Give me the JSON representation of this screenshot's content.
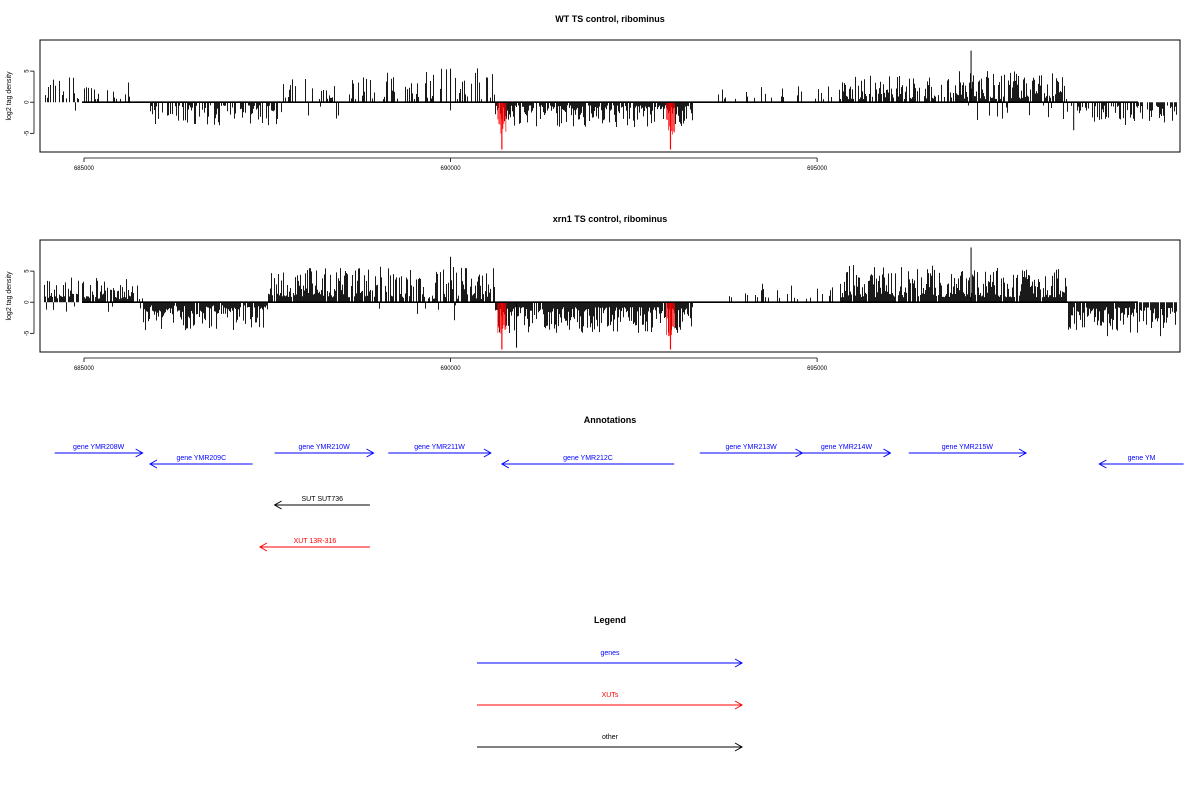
{
  "chart_data": [
    {
      "type": "bar",
      "title": "WT TS control, ribominus",
      "xlabel": "",
      "ylabel": "log2 tag density",
      "xlim": [
        684400,
        699950
      ],
      "xticks": [
        685000,
        690000,
        695000
      ],
      "ylim": [
        -8,
        10
      ],
      "yticks": [
        -5,
        0,
        5
      ],
      "colors": {
        "signal": "#000000",
        "highlight": "#ff0000"
      },
      "highlight": [
        {
          "x": 690700,
          "y": -7.6
        },
        {
          "x": 693000,
          "y": -7.6
        }
      ],
      "segments": [
        {
          "start": 684450,
          "end": 685800,
          "density": 0.3,
          "min": 0.5,
          "max": 4.0,
          "neg": 0.05
        },
        {
          "start": 685800,
          "end": 687700,
          "density": 0.55,
          "min": -3.8,
          "max": -0.5
        },
        {
          "start": 687700,
          "end": 689000,
          "density": 0.35,
          "min": 0.5,
          "max": 4.5,
          "neg": 0.15
        },
        {
          "start": 689000,
          "end": 690600,
          "density": 0.4,
          "min": 0.5,
          "max": 5.5,
          "neg": 0.05
        },
        {
          "start": 690600,
          "end": 693300,
          "density": 0.85,
          "min": -4.0,
          "max": -0.5
        },
        {
          "start": 693600,
          "end": 695300,
          "density": 0.15,
          "min": 0.5,
          "max": 2.8
        },
        {
          "start": 695300,
          "end": 696800,
          "density": 0.65,
          "min": 0.5,
          "max": 4.3
        },
        {
          "start": 696800,
          "end": 698400,
          "density": 0.9,
          "min": 0.5,
          "max": 5.0,
          "neg": 0.04
        },
        {
          "start": 698400,
          "end": 699900,
          "density": 0.6,
          "min": -3.8,
          "max": -0.5
        }
      ],
      "peaks": [
        {
          "x": 697100,
          "y": 8.3
        },
        {
          "x": 690000,
          "y": 5.4
        },
        {
          "x": 698500,
          "y": -4.5
        }
      ]
    },
    {
      "type": "bar",
      "title": "xrn1 TS control, ribominus",
      "xlabel": "",
      "ylabel": "log2 tag density",
      "xlim": [
        684400,
        699950
      ],
      "xticks": [
        685000,
        690000,
        695000
      ],
      "ylim": [
        -8,
        10
      ],
      "yticks": [
        -5,
        0,
        5
      ],
      "colors": {
        "signal": "#000000",
        "highlight": "#ff0000"
      },
      "highlight": [
        {
          "x": 690700,
          "y": -7.6
        },
        {
          "x": 693000,
          "y": -7.6
        }
      ],
      "segments": [
        {
          "start": 684450,
          "end": 685800,
          "density": 0.85,
          "min": 0.5,
          "max": 4.0,
          "neg": 0.08
        },
        {
          "start": 685800,
          "end": 687500,
          "density": 0.9,
          "min": -4.5,
          "max": -0.5
        },
        {
          "start": 687500,
          "end": 689000,
          "density": 0.9,
          "min": 0.8,
          "max": 5.5
        },
        {
          "start": 689000,
          "end": 690600,
          "density": 0.8,
          "min": 0.5,
          "max": 6.0,
          "neg": 0.08
        },
        {
          "start": 690600,
          "end": 693300,
          "density": 0.95,
          "min": -5.0,
          "max": -0.8
        },
        {
          "start": 693600,
          "end": 695300,
          "density": 0.2,
          "min": 0.5,
          "max": 3.0
        },
        {
          "start": 695300,
          "end": 696700,
          "density": 0.9,
          "min": 0.8,
          "max": 6.0
        },
        {
          "start": 696700,
          "end": 698400,
          "density": 0.95,
          "min": 0.8,
          "max": 5.5
        },
        {
          "start": 698400,
          "end": 699900,
          "density": 0.9,
          "min": -5.5,
          "max": -0.8
        }
      ],
      "peaks": [
        {
          "x": 697100,
          "y": 8.8
        },
        {
          "x": 690000,
          "y": 7.3
        },
        {
          "x": 690900,
          "y": -7.3
        }
      ]
    }
  ],
  "annotations": {
    "title": "Annotations",
    "features": [
      {
        "label": "gene YMR208W",
        "start": 684600,
        "end": 685800,
        "strand": "+",
        "row": 0,
        "color": "#0000ff"
      },
      {
        "label": "gene YMR209C",
        "start": 685900,
        "end": 687300,
        "strand": "-",
        "row": 1,
        "color": "#0000ff"
      },
      {
        "label": "gene YMR210W",
        "start": 687600,
        "end": 688950,
        "strand": "+",
        "row": 0,
        "color": "#0000ff"
      },
      {
        "label": "gene YMR211W",
        "start": 689150,
        "end": 690550,
        "strand": "+",
        "row": 0,
        "color": "#0000ff"
      },
      {
        "label": "gene YMR212C",
        "start": 690700,
        "end": 693050,
        "strand": "-",
        "row": 1,
        "color": "#0000ff"
      },
      {
        "label": "gene YMR213W",
        "start": 693400,
        "end": 694800,
        "strand": "+",
        "row": 0,
        "color": "#0000ff"
      },
      {
        "label": "gene YMR214W",
        "start": 694800,
        "end": 696000,
        "strand": "+",
        "row": 0,
        "color": "#0000ff"
      },
      {
        "label": "gene YMR215W",
        "start": 696250,
        "end": 697850,
        "strand": "+",
        "row": 0,
        "color": "#0000ff"
      },
      {
        "label": "gene YM",
        "start": 698850,
        "end": 700000,
        "strand": "-",
        "row": 1,
        "color": "#0000ff"
      },
      {
        "label": "SUT SUT736",
        "start": 687600,
        "end": 688900,
        "strand": "-",
        "row": 2,
        "color": "#000000"
      },
      {
        "label": "XUT 13R-316",
        "start": 687400,
        "end": 688900,
        "strand": "-",
        "row": 3,
        "color": "#ff0000"
      }
    ]
  },
  "legend": {
    "title": "Legend",
    "items": [
      {
        "label": "genes",
        "color": "#0000ff"
      },
      {
        "label": "XUTs",
        "color": "#ff0000"
      },
      {
        "label": "other",
        "color": "#000000"
      }
    ]
  }
}
